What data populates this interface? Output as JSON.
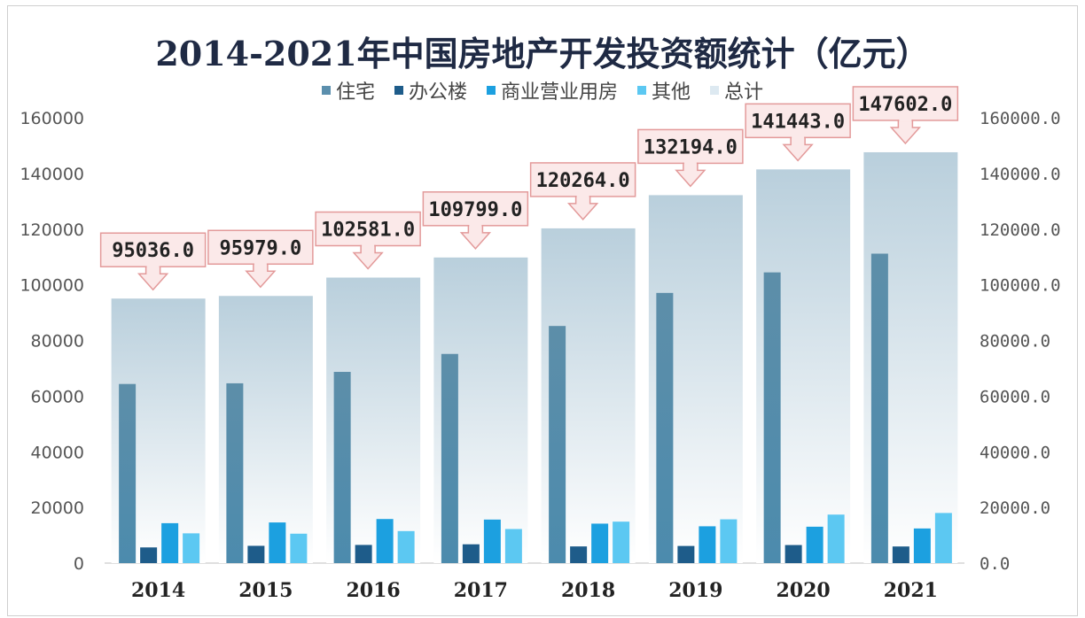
{
  "chart_data": {
    "type": "bar",
    "title": "2014-2021年中国房地产开发投资额统计（亿元）",
    "categories": [
      "2014",
      "2015",
      "2016",
      "2017",
      "2018",
      "2019",
      "2020",
      "2021"
    ],
    "series": [
      {
        "name": "住宅",
        "values": [
          64352,
          64595,
          68704,
          75148,
          85192,
          97071,
          104446,
          111173
        ],
        "color": "#5b8fad"
      },
      {
        "name": "办公楼",
        "values": [
          5641,
          6210,
          6533,
          6761,
          5996,
          6163,
          6494,
          5974
        ],
        "color": "#1e5c8a"
      },
      {
        "name": "商业营业用房",
        "values": [
          14346,
          14607,
          15838,
          15640,
          14177,
          13226,
          13076,
          12445
        ],
        "color": "#1ca0e0"
      },
      {
        "name": "其他",
        "values": [
          10697,
          10567,
          11506,
          12250,
          14899,
          15734,
          17427,
          18010
        ],
        "color": "#5cc8f2"
      },
      {
        "name": "总计",
        "values": [
          95036.0,
          95979.0,
          102581.0,
          109799.0,
          120264.0,
          132194.0,
          141443.0,
          147602.0
        ],
        "color": "#dde9f1"
      }
    ],
    "total_labels": [
      "95036.0",
      "95979.0",
      "102581.0",
      "109799.0",
      "120264.0",
      "132194.0",
      "141443.0",
      "147602.0"
    ],
    "ylim": [
      0,
      160000
    ],
    "y_ticks_left": [
      "0",
      "20000",
      "40000",
      "60000",
      "80000",
      "100000",
      "120000",
      "140000",
      "160000"
    ],
    "y_ticks_right": [
      "0.0",
      "20000.0",
      "40000.0",
      "60000.0",
      "80000.0",
      "100000.0",
      "120000.0",
      "140000.0",
      "160000.0"
    ],
    "legend_position": "top",
    "grid": false
  }
}
